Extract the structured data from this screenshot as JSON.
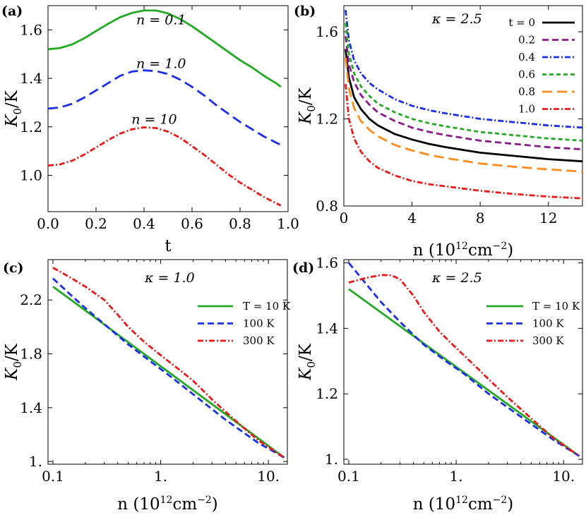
{
  "chart_data": [
    {
      "panel": "(a)",
      "type": "line",
      "xlabel": "t",
      "ylabel": "K0/K",
      "xlim": [
        0,
        1
      ],
      "ylim": [
        0.85,
        1.7
      ],
      "xscale": "linear",
      "xticks": [
        "0.0",
        "0.2",
        "0.4",
        "0.6",
        "0.8",
        "1.0"
      ],
      "yticks": [
        "1.0",
        "1.2",
        "1.4",
        "1.6"
      ],
      "annotations": [
        {
          "text": "n = 0.1",
          "x": 0.45,
          "y": 1.64
        },
        {
          "text": "n = 1.0",
          "x": 0.45,
          "y": 1.46
        },
        {
          "text": "n = 10",
          "x": 0.43,
          "y": 1.23
        }
      ],
      "series": [
        {
          "name": "n = 0.1",
          "color": "#22aa22",
          "dash": "solid",
          "x": [
            0,
            0.05,
            0.1,
            0.15,
            0.2,
            0.25,
            0.3,
            0.35,
            0.4,
            0.45,
            0.5,
            0.55,
            0.6,
            0.65,
            0.7,
            0.75,
            0.8,
            0.85,
            0.9,
            0.95,
            0.97
          ],
          "y": [
            1.52,
            1.525,
            1.54,
            1.565,
            1.595,
            1.625,
            1.652,
            1.67,
            1.68,
            1.68,
            1.668,
            1.645,
            1.615,
            1.58,
            1.545,
            1.51,
            1.475,
            1.445,
            1.41,
            1.38,
            1.365
          ]
        },
        {
          "name": "n = 1.0",
          "color": "#1a2ee8",
          "dash": "long",
          "x": [
            0,
            0.05,
            0.1,
            0.15,
            0.2,
            0.25,
            0.3,
            0.35,
            0.4,
            0.45,
            0.5,
            0.55,
            0.6,
            0.65,
            0.7,
            0.75,
            0.8,
            0.85,
            0.9,
            0.95,
            0.97
          ],
          "y": [
            1.275,
            1.28,
            1.295,
            1.32,
            1.35,
            1.38,
            1.41,
            1.428,
            1.433,
            1.43,
            1.418,
            1.395,
            1.365,
            1.33,
            1.29,
            1.255,
            1.22,
            1.19,
            1.16,
            1.135,
            1.125
          ]
        },
        {
          "name": "n = 10",
          "color": "#e81a1a",
          "dash": "dashdot",
          "x": [
            0,
            0.05,
            0.1,
            0.15,
            0.2,
            0.25,
            0.3,
            0.35,
            0.4,
            0.45,
            0.5,
            0.55,
            0.6,
            0.65,
            0.7,
            0.75,
            0.8,
            0.85,
            0.9,
            0.95,
            0.97
          ],
          "y": [
            1.04,
            1.045,
            1.06,
            1.085,
            1.115,
            1.145,
            1.172,
            1.19,
            1.198,
            1.195,
            1.18,
            1.155,
            1.12,
            1.085,
            1.045,
            1.005,
            0.97,
            0.94,
            0.91,
            0.885,
            0.875
          ]
        }
      ]
    },
    {
      "panel": "(b)",
      "type": "line",
      "xlabel": "n (10^12 cm^-2)",
      "ylabel": "K0/K",
      "annotation": "κ = 2.5",
      "xlim": [
        0,
        14
      ],
      "ylim": [
        0.8,
        1.72
      ],
      "xscale": "linear",
      "xticks": [
        "0",
        "4",
        "8",
        "12"
      ],
      "yticks": [
        "0.8",
        "1.2",
        "1.6"
      ],
      "legend_position": "top-right",
      "series": [
        {
          "name": "t = 0",
          "color": "#000000",
          "dash": "solid",
          "x": [
            0.1,
            0.3,
            0.6,
            1,
            1.5,
            2,
            3,
            4,
            5,
            6,
            8,
            10,
            12,
            14
          ],
          "y": [
            1.52,
            1.39,
            1.3,
            1.245,
            1.2,
            1.17,
            1.13,
            1.105,
            1.085,
            1.07,
            1.045,
            1.03,
            1.015,
            1.005
          ]
        },
        {
          "name": "0.2",
          "color": "#8b1a8b",
          "dash": "medium",
          "x": [
            0.1,
            0.3,
            0.6,
            1,
            1.5,
            2,
            3,
            4,
            5,
            6,
            8,
            10,
            12,
            14
          ],
          "y": [
            1.58,
            1.45,
            1.37,
            1.31,
            1.265,
            1.23,
            1.19,
            1.16,
            1.14,
            1.125,
            1.1,
            1.085,
            1.07,
            1.06
          ]
        },
        {
          "name": "0.4",
          "color": "#1a2ee8",
          "dash": "dashdot",
          "x": [
            0.1,
            0.3,
            0.6,
            1,
            1.5,
            2,
            3,
            4,
            5,
            6,
            8,
            10,
            12,
            14
          ],
          "y": [
            1.7,
            1.56,
            1.47,
            1.41,
            1.365,
            1.335,
            1.29,
            1.26,
            1.24,
            1.225,
            1.2,
            1.185,
            1.17,
            1.16
          ]
        },
        {
          "name": "0.6",
          "color": "#22aa22",
          "dash": "short",
          "x": [
            0.1,
            0.3,
            0.6,
            1,
            1.5,
            2,
            3,
            4,
            5,
            6,
            8,
            10,
            12,
            14
          ],
          "y": [
            1.64,
            1.5,
            1.41,
            1.35,
            1.305,
            1.27,
            1.23,
            1.2,
            1.18,
            1.165,
            1.14,
            1.125,
            1.11,
            1.1
          ]
        },
        {
          "name": "0.8",
          "color": "#ff8c1a",
          "dash": "long",
          "x": [
            0.1,
            0.3,
            0.6,
            1,
            1.5,
            2,
            3,
            4,
            5,
            6,
            8,
            10,
            12,
            14
          ],
          "y": [
            1.48,
            1.34,
            1.25,
            1.19,
            1.15,
            1.12,
            1.08,
            1.055,
            1.035,
            1.02,
            0.995,
            0.98,
            0.968,
            0.958
          ]
        },
        {
          "name": "1.0",
          "color": "#e81a1a",
          "dash": "dashdot",
          "x": [
            0.1,
            0.3,
            0.6,
            1,
            1.5,
            2,
            3,
            4,
            5,
            6,
            8,
            10,
            12,
            14
          ],
          "y": [
            1.36,
            1.2,
            1.11,
            1.05,
            1.005,
            0.975,
            0.94,
            0.915,
            0.9,
            0.89,
            0.87,
            0.855,
            0.843,
            0.835
          ]
        }
      ]
    },
    {
      "panel": "(c)",
      "type": "line",
      "xlabel": "n (10^12 cm^-2)",
      "ylabel": "K0/K",
      "annotation": "κ = 1.0",
      "xscale": "log",
      "xlim": [
        0.09,
        15
      ],
      "ylim": [
        0.98,
        2.5
      ],
      "xticks": [
        "0.1",
        "1.",
        "10."
      ],
      "yticks": [
        "1.",
        "1.4",
        "1.8",
        "2.2"
      ],
      "legend_position": "top-right",
      "series": [
        {
          "name": "T = 10 K",
          "color": "#22aa22",
          "dash": "solid",
          "x": [
            0.1,
            14
          ],
          "y": [
            2.3,
            1.03
          ]
        },
        {
          "name": "100 K",
          "color": "#1a2ee8",
          "dash": "medium",
          "x": [
            0.1,
            0.15,
            0.2,
            0.3,
            0.5,
            0.8,
            1.2,
            2,
            4,
            8,
            14
          ],
          "y": [
            2.36,
            2.23,
            2.14,
            2.02,
            1.87,
            1.745,
            1.64,
            1.5,
            1.31,
            1.14,
            1.03
          ]
        },
        {
          "name": "300 K",
          "color": "#e81a1a",
          "dash": "dashdot",
          "x": [
            0.1,
            0.15,
            0.2,
            0.3,
            0.4,
            0.5,
            0.7,
            1,
            1.5,
            2,
            3,
            5,
            8,
            14
          ],
          "y": [
            2.44,
            2.36,
            2.3,
            2.2,
            2.09,
            2.0,
            1.89,
            1.79,
            1.68,
            1.6,
            1.46,
            1.3,
            1.16,
            1.03
          ]
        }
      ]
    },
    {
      "panel": "(d)",
      "type": "line",
      "xlabel": "n (10^12 cm^-2)",
      "ylabel": "K0/K",
      "annotation": "κ = 2.5",
      "xscale": "log",
      "xlim": [
        0.09,
        15
      ],
      "ylim": [
        0.985,
        1.61
      ],
      "xticks": [
        "0.1",
        "1.",
        "10."
      ],
      "yticks": [
        "1.",
        "1.2",
        "1.4",
        "1.6"
      ],
      "legend_position": "top-right",
      "series": [
        {
          "name": "T = 10 K",
          "color": "#22aa22",
          "dash": "solid",
          "x": [
            0.1,
            14
          ],
          "y": [
            1.52,
            1.01
          ]
        },
        {
          "name": "100 K",
          "color": "#1a2ee8",
          "dash": "medium",
          "x": [
            0.1,
            0.15,
            0.2,
            0.3,
            0.5,
            0.8,
            1.2,
            2,
            4,
            8,
            14
          ],
          "y": [
            1.6,
            1.53,
            1.48,
            1.42,
            1.35,
            1.3,
            1.26,
            1.2,
            1.13,
            1.06,
            1.01
          ]
        },
        {
          "name": "300 K",
          "color": "#e81a1a",
          "dash": "dashdot",
          "x": [
            0.1,
            0.15,
            0.2,
            0.25,
            0.3,
            0.4,
            0.5,
            0.7,
            1,
            1.5,
            2,
            3,
            5,
            8,
            14
          ],
          "y": [
            1.54,
            1.555,
            1.563,
            1.562,
            1.55,
            1.5,
            1.45,
            1.39,
            1.34,
            1.285,
            1.245,
            1.19,
            1.125,
            1.065,
            1.01
          ]
        }
      ]
    }
  ]
}
